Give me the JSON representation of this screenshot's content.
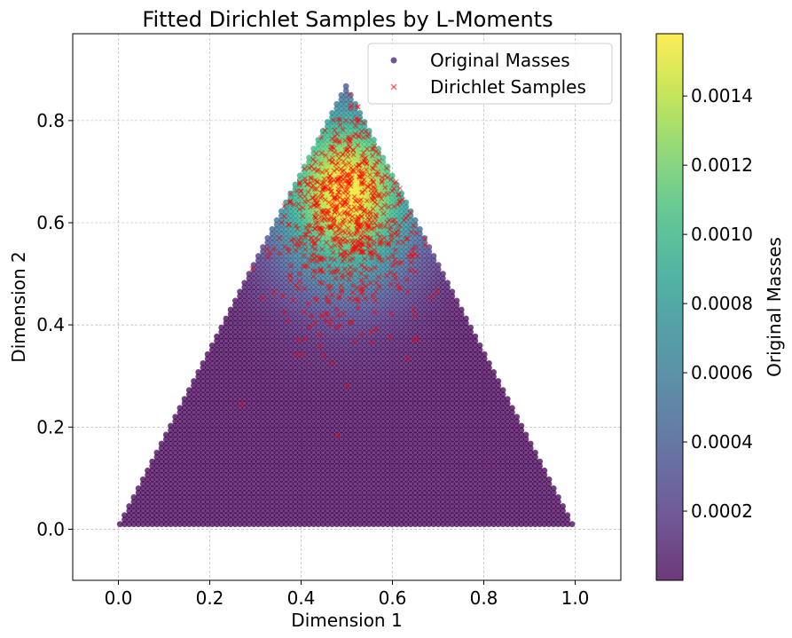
{
  "chart_data": {
    "type": "scatter",
    "title": "Fitted Dirichlet Samples by L-Moments",
    "xlabel": "Dimension 1",
    "ylabel": "Dimension 2",
    "xlim": [
      -0.1,
      1.1
    ],
    "ylim": [
      -0.1,
      0.97
    ],
    "x_ticks": [
      0.0,
      0.2,
      0.4,
      0.6,
      0.8,
      1.0
    ],
    "x_tick_labels": [
      "0.0",
      "0.2",
      "0.4",
      "0.6",
      "0.8",
      "1.0"
    ],
    "y_ticks": [
      0.0,
      0.2,
      0.4,
      0.6,
      0.8
    ],
    "y_tick_labels": [
      "0.0",
      "0.2",
      "0.4",
      "0.6",
      "0.8"
    ],
    "grid": true,
    "legend": {
      "placement": "top-right",
      "entries": [
        "Original Masses",
        "Dirichlet Samples"
      ]
    },
    "colorbar": {
      "label": "Original Masses",
      "min": 0.0,
      "max": 0.00158,
      "ticks": [
        0.0002,
        0.0004,
        0.0006,
        0.0008,
        0.001,
        0.0012,
        0.0014
      ],
      "tick_labels": [
        "0.0002",
        "0.0004",
        "0.0006",
        "0.0008",
        "0.0010",
        "0.0012",
        "0.0014"
      ],
      "colormap": "viridis"
    },
    "series": [
      {
        "name": "Original Masses",
        "kind": "simplex-grid",
        "grid_step": 0.0101,
        "peak_xy": [
          0.5,
          0.66
        ],
        "peak_value": 0.00158,
        "color_scale": "viridis",
        "alpha": 0.75
      },
      {
        "name": "Dirichlet Samples",
        "marker": "x",
        "color": "#ff0000",
        "alpha": 0.5,
        "center_xy": [
          0.5,
          0.63
        ],
        "count": 800
      }
    ]
  },
  "colors": {
    "viridis": [
      "#440154",
      "#482878",
      "#3e4989",
      "#31688e",
      "#26828e",
      "#1f9e89",
      "#35b779",
      "#6ece58",
      "#b5de2b",
      "#fde725"
    ],
    "grid": "#b0b0b0",
    "sample_marker": "#ff0000"
  }
}
